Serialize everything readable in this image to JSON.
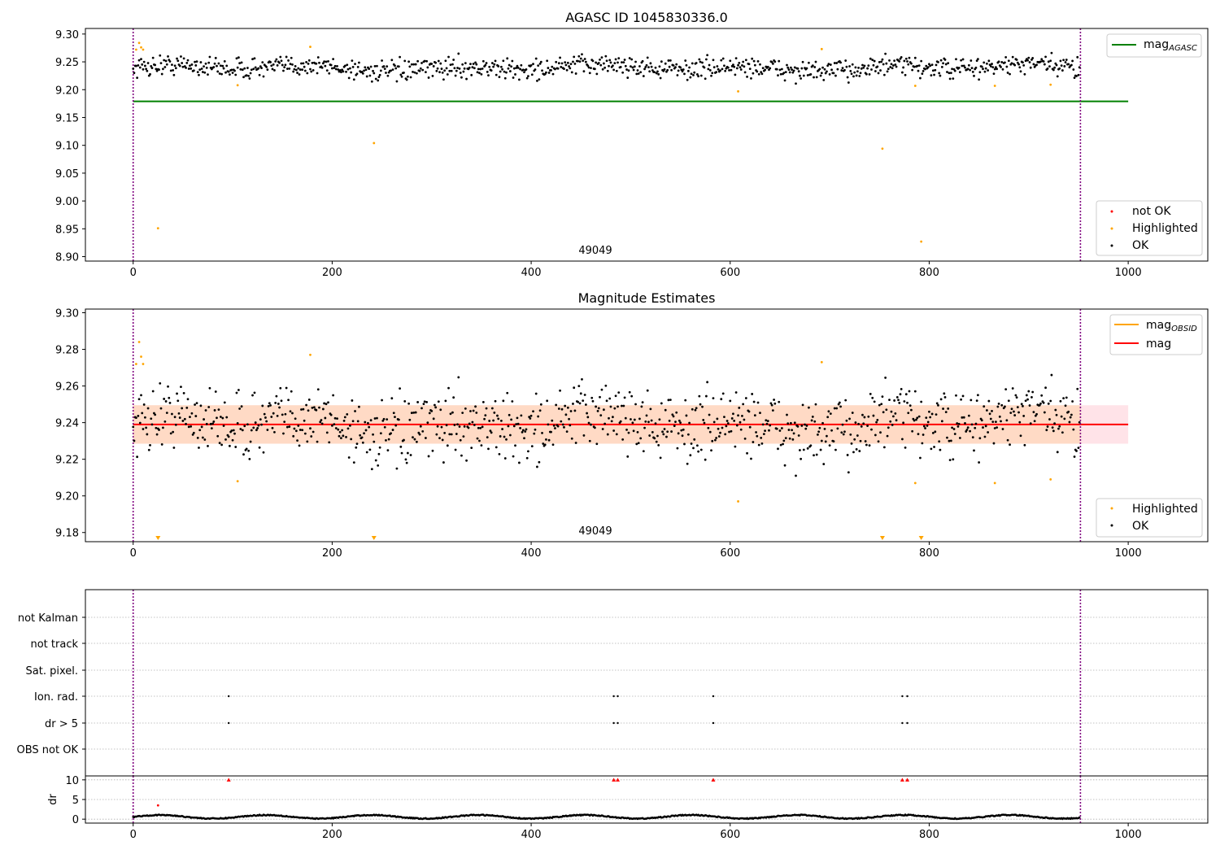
{
  "chart_data": [
    {
      "type": "scatter",
      "title": "AGASC ID 1045830336.0",
      "annotation": "49049",
      "xlim": [
        -48,
        1080
      ],
      "ylim": [
        8.892,
        9.31
      ],
      "xticks": [
        "0",
        "200",
        "400",
        "600",
        "800",
        "1000"
      ],
      "yticks": [
        "8.90",
        "8.95",
        "9.00",
        "9.05",
        "9.10",
        "9.15",
        "9.20",
        "9.25",
        "9.30"
      ],
      "obs_boundaries": [
        0,
        952
      ],
      "mag_agasc": 9.179,
      "mag_agasc_range": [
        0,
        1000
      ],
      "legend_top": [
        {
          "label": "mag",
          "sub": "AGASC",
          "color": "#008000"
        }
      ],
      "legend_bottom": [
        {
          "label": "not OK",
          "color": "#ff0000"
        },
        {
          "label": "Highlighted",
          "color": "#ffa500"
        },
        {
          "label": "OK",
          "color": "#000000"
        }
      ],
      "highlighted_points": [
        [
          3,
          9.272
        ],
        [
          6,
          9.284
        ],
        [
          8,
          9.276
        ],
        [
          10,
          9.272
        ],
        [
          25,
          8.951
        ],
        [
          105,
          9.208
        ],
        [
          178,
          9.277
        ],
        [
          242,
          9.104
        ],
        [
          608,
          9.197
        ],
        [
          692,
          9.273
        ],
        [
          753,
          9.094
        ],
        [
          786,
          9.207
        ],
        [
          792,
          8.927
        ],
        [
          866,
          9.207
        ],
        [
          922,
          9.209
        ]
      ],
      "ok_series": {
        "n": 952,
        "mean": 9.239,
        "spread": 0.009
      }
    },
    {
      "type": "scatter",
      "title": "Magnitude Estimates",
      "annotation": "49049",
      "xlim": [
        -48,
        1080
      ],
      "ylim": [
        9.175,
        9.302
      ],
      "xticks": [
        "0",
        "200",
        "400",
        "600",
        "800",
        "1000"
      ],
      "yticks": [
        "9.18",
        "9.20",
        "9.22",
        "9.24",
        "9.26",
        "9.28",
        "9.30"
      ],
      "obs_boundaries": [
        0,
        952
      ],
      "mag": 9.239,
      "mag_band": [
        9.2285,
        9.2495
      ],
      "legend_top": [
        {
          "label": "mag",
          "sub": "OBSID",
          "color": "#ffa500"
        },
        {
          "label": "mag",
          "sub": "",
          "color": "#ff0000"
        }
      ],
      "legend_bottom": [
        {
          "label": "Highlighted",
          "color": "#ffa500"
        },
        {
          "label": "OK",
          "color": "#000000"
        }
      ],
      "highlighted_points": [
        [
          3,
          9.272
        ],
        [
          6,
          9.284
        ],
        [
          8,
          9.276
        ],
        [
          10,
          9.272
        ],
        [
          105,
          9.208
        ],
        [
          178,
          9.277
        ],
        [
          608,
          9.197
        ],
        [
          692,
          9.273
        ],
        [
          786,
          9.207
        ],
        [
          866,
          9.207
        ],
        [
          922,
          9.209
        ]
      ],
      "offscale_low_markers": [
        25,
        242,
        753,
        792
      ]
    },
    {
      "type": "scatter",
      "title": "",
      "xlim": [
        -48,
        1080
      ],
      "flag_rows": [
        "not Kalman",
        "not track",
        "Sat. pixel.",
        "Ion. rad.",
        "dr > 5",
        "OBS not OK"
      ],
      "flag_points": {
        "Ion. rad.": [
          96,
          483,
          487,
          583,
          773,
          778
        ],
        "dr > 5": [
          96,
          483,
          487,
          583,
          773,
          778
        ]
      },
      "obs_boundaries": [
        0,
        952
      ]
    },
    {
      "type": "scatter",
      "title": "",
      "ylabel": "dr",
      "xlim": [
        -48,
        1080
      ],
      "ylim": [
        -1,
        11
      ],
      "xticks": [
        "0",
        "200",
        "400",
        "600",
        "800",
        "1000"
      ],
      "yticks": [
        "0",
        "5",
        "10"
      ],
      "obs_boundaries": [
        0,
        952
      ],
      "red_markers_at_10": [
        96,
        483,
        487,
        583,
        773,
        778
      ],
      "red_points": [
        [
          25,
          3.5
        ]
      ],
      "ok_series": {
        "n": 952,
        "typical": 0.6
      }
    }
  ]
}
